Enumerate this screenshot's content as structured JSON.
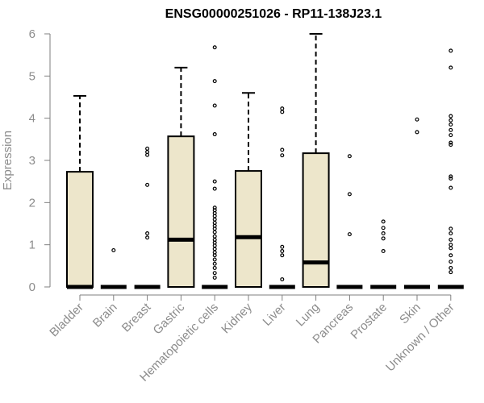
{
  "chart_data": {
    "type": "box",
    "title": "ENSG00000251026 - RP11-138J23.1",
    "ylabel": "Expression",
    "xlabel": "",
    "ylim": [
      0,
      6
    ],
    "yticks": [
      0,
      1,
      2,
      3,
      4,
      5,
      6
    ],
    "grid": false,
    "colors": {
      "box_fill": "#ede6cb",
      "box_stroke": "#000000",
      "axis_text": "#8c8c8c"
    },
    "categories": [
      "Bladder",
      "Brain",
      "Breast",
      "Gastric",
      "Hematopoietic cells",
      "Kidney",
      "Liver",
      "Lung",
      "Pancreas",
      "Prostate",
      "Skin",
      "Unknown / Other"
    ],
    "boxes": [
      {
        "category": "Bladder",
        "q1": 0,
        "median": 0,
        "q3": 2.73,
        "whisker_low": 0,
        "whisker_high": 4.53,
        "outliers": []
      },
      {
        "category": "Brain",
        "q1": 0,
        "median": 0,
        "q3": 0,
        "whisker_low": 0,
        "whisker_high": 0,
        "outliers": [
          0.87
        ]
      },
      {
        "category": "Breast",
        "q1": 0,
        "median": 0,
        "q3": 0,
        "whisker_low": 0,
        "whisker_high": 0,
        "outliers": [
          1.17,
          1.27,
          2.42,
          3.13,
          3.2,
          3.28
        ]
      },
      {
        "category": "Gastric",
        "q1": 0,
        "median": 1.12,
        "q3": 3.57,
        "whisker_low": 0,
        "whisker_high": 5.2,
        "outliers": []
      },
      {
        "category": "Hematopoietic cells",
        "q1": 0,
        "median": 0,
        "q3": 0,
        "whisker_low": 0,
        "whisker_high": 0,
        "outliers": [
          0.22,
          0.33,
          0.45,
          0.55,
          0.65,
          0.75,
          0.82,
          0.9,
          0.98,
          1.05,
          1.12,
          1.2,
          1.3,
          1.38,
          1.45,
          1.52,
          1.6,
          1.68,
          1.75,
          1.82,
          1.88,
          2.33,
          2.5,
          3.62,
          4.3,
          4.88,
          5.68
        ]
      },
      {
        "category": "Kidney",
        "q1": 0,
        "median": 1.18,
        "q3": 2.75,
        "whisker_low": 0,
        "whisker_high": 4.6,
        "outliers": []
      },
      {
        "category": "Liver",
        "q1": 0,
        "median": 0,
        "q3": 0,
        "whisker_low": 0,
        "whisker_high": 0,
        "outliers": [
          0.18,
          0.75,
          0.85,
          0.95,
          3.12,
          3.25,
          4.15,
          4.23
        ]
      },
      {
        "category": "Lung",
        "q1": 0,
        "median": 0.58,
        "q3": 3.17,
        "whisker_low": 0,
        "whisker_high": 6.0,
        "outliers": []
      },
      {
        "category": "Pancreas",
        "q1": 0,
        "median": 0,
        "q3": 0,
        "whisker_low": 0,
        "whisker_high": 0,
        "outliers": [
          1.25,
          2.2,
          3.1
        ]
      },
      {
        "category": "Prostate",
        "q1": 0,
        "median": 0,
        "q3": 0,
        "whisker_low": 0,
        "whisker_high": 0,
        "outliers": [
          0.85,
          1.15,
          1.27,
          1.4,
          1.55
        ]
      },
      {
        "category": "Skin",
        "q1": 0,
        "median": 0,
        "q3": 0,
        "whisker_low": 0,
        "whisker_high": 0,
        "outliers": [
          3.67,
          3.97
        ]
      },
      {
        "category": "Unknown / Other",
        "q1": 0,
        "median": 0,
        "q3": 0,
        "whisker_low": 0,
        "whisker_high": 0,
        "outliers": [
          0.35,
          0.45,
          0.6,
          0.75,
          0.92,
          1.0,
          1.12,
          1.27,
          1.38,
          2.35,
          2.57,
          2.62,
          3.37,
          3.42,
          3.6,
          3.72,
          3.85,
          3.95,
          4.05,
          5.2,
          5.6
        ]
      }
    ]
  }
}
